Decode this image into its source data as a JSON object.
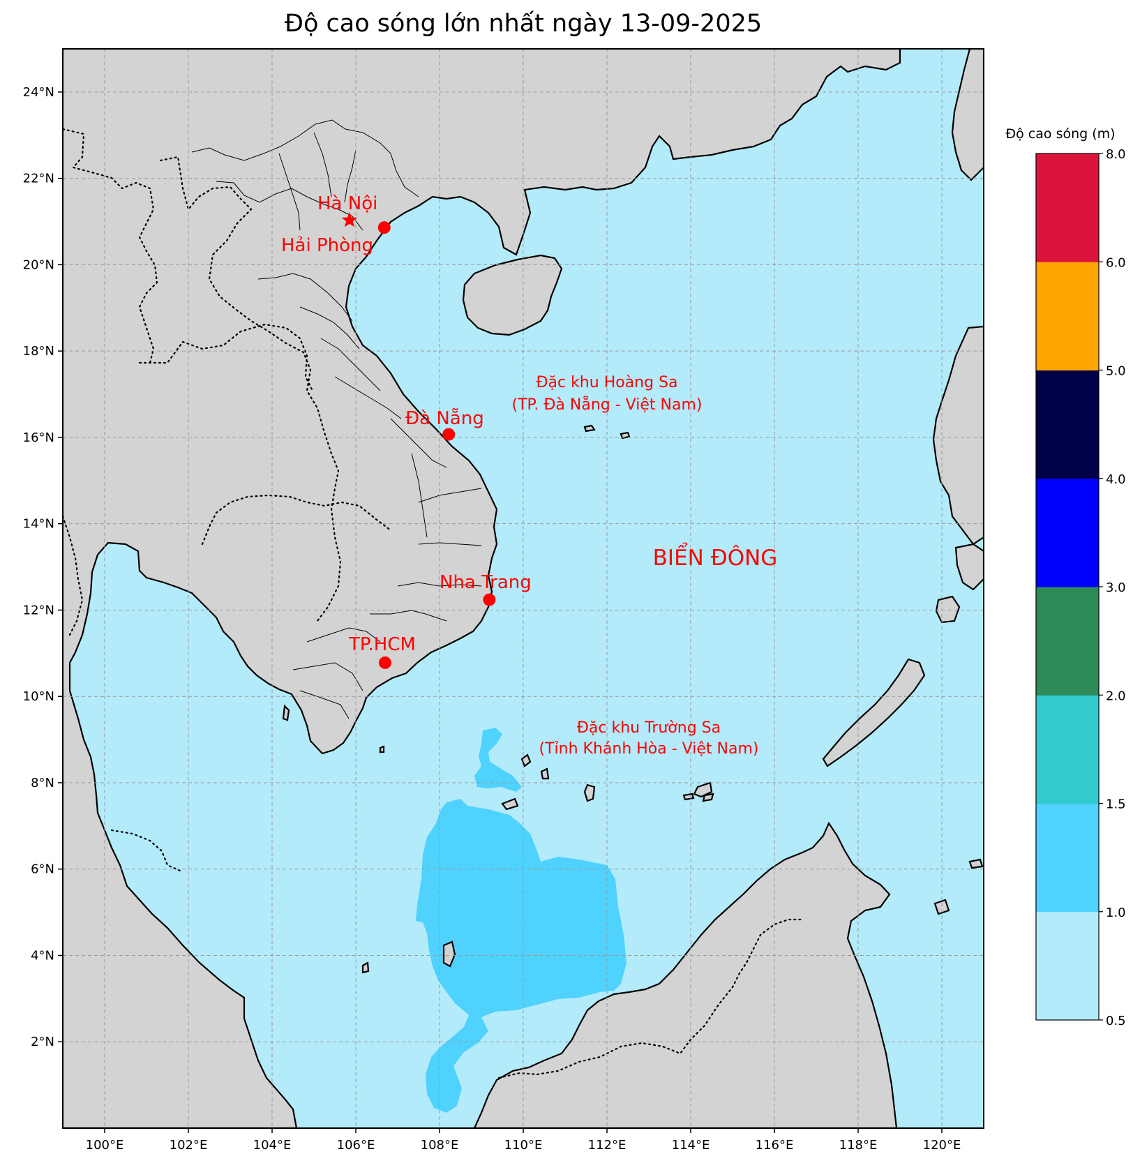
{
  "title": "Độ cao sóng lớn nhất ngày 13-09-2025",
  "map": {
    "lon_range": [
      99,
      121
    ],
    "lat_range": [
      0,
      25
    ],
    "lon_ticks": [
      "100°E",
      "102°E",
      "104°E",
      "106°E",
      "108°E",
      "110°E",
      "112°E",
      "114°E",
      "116°E",
      "118°E",
      "120°E"
    ],
    "lat_ticks": [
      "2°N",
      "4°N",
      "6°N",
      "8°N",
      "10°N",
      "12°N",
      "14°N",
      "16°N",
      "18°N",
      "20°N",
      "22°N",
      "24°N"
    ],
    "grid": true,
    "land_color": "#d3d3d3",
    "sea_color": "#b3ebfb"
  },
  "cities": [
    {
      "name": "Hà Nội",
      "lon": 105.85,
      "lat": 21.03,
      "marker": "star"
    },
    {
      "name": "Hải Phòng",
      "lon": 106.68,
      "lat": 20.86,
      "marker": "circle"
    },
    {
      "name": "Đà Nẵng",
      "lon": 108.22,
      "lat": 16.07,
      "marker": "circle"
    },
    {
      "name": "Nha Trang",
      "lon": 109.19,
      "lat": 12.24,
      "marker": "circle"
    },
    {
      "name": "TP.HCM",
      "lon": 106.7,
      "lat": 10.78,
      "marker": "circle"
    }
  ],
  "labels": {
    "hoang_sa_1": "Đặc khu Hoàng Sa",
    "hoang_sa_2": "(TP. Đà Nẵng - Việt Nam)",
    "truong_sa_1": "Đặc khu Trường Sa",
    "truong_sa_2": "(Tỉnh Khánh Hòa - Việt Nam)",
    "sea_name": "BIỂN ĐÔNG"
  },
  "colorbar": {
    "title": "Độ cao sóng (m)",
    "ticks": [
      "0.5",
      "1.0",
      "1.5",
      "2.0",
      "3.0",
      "4.0",
      "5.0",
      "6.0",
      "8.0"
    ],
    "bands": [
      {
        "from": 0.5,
        "to": 1.0,
        "color": "#b3ebfb"
      },
      {
        "from": 1.0,
        "to": 1.5,
        "color": "#4fd2fd"
      },
      {
        "from": 1.5,
        "to": 2.0,
        "color": "#31cbcb"
      },
      {
        "from": 2.0,
        "to": 3.0,
        "color": "#2e8b57"
      },
      {
        "from": 3.0,
        "to": 4.0,
        "color": "#0000ff"
      },
      {
        "from": 4.0,
        "to": 5.0,
        "color": "#000048"
      },
      {
        "from": 5.0,
        "to": 6.0,
        "color": "#ffa500"
      },
      {
        "from": 6.0,
        "to": 8.0,
        "color": "#dc143c"
      }
    ]
  }
}
